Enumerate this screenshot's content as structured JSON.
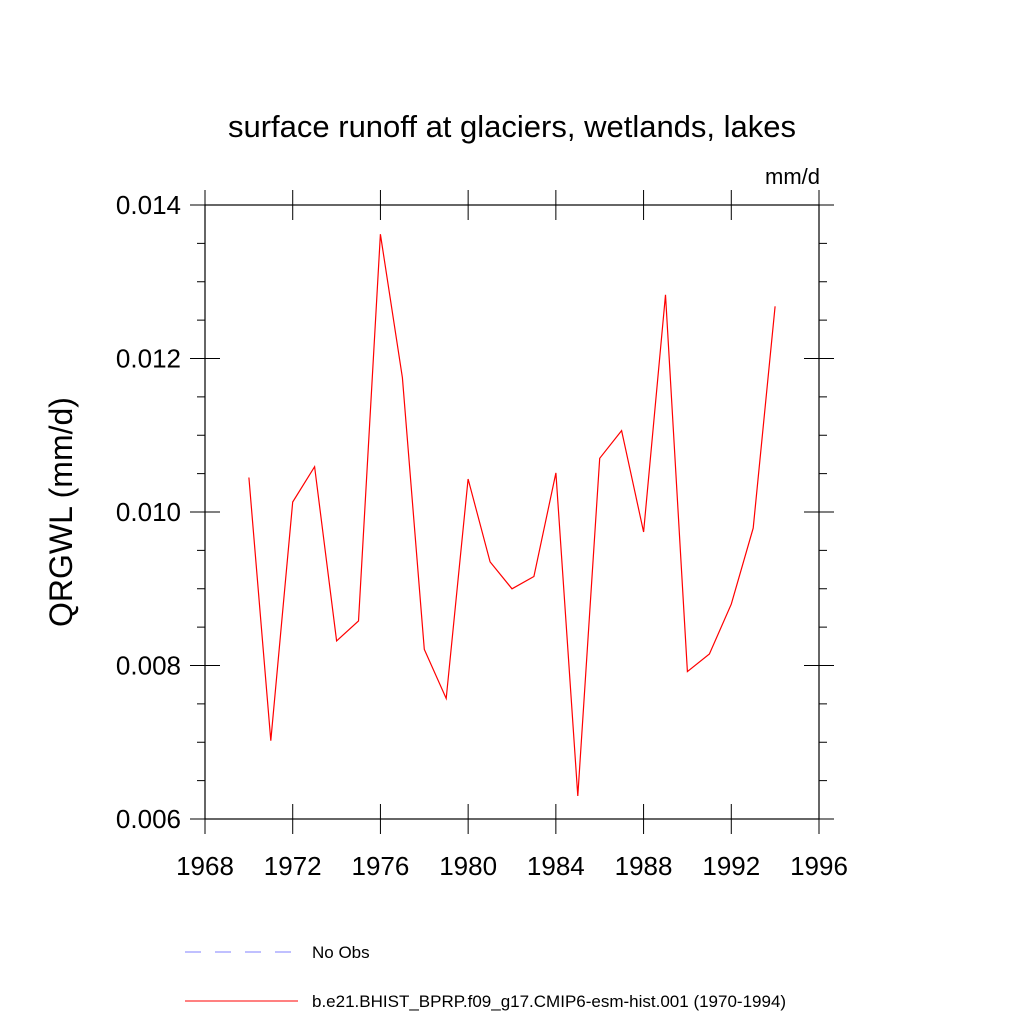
{
  "chart_data": {
    "type": "line",
    "title": "surface runoff at glaciers, wetlands, lakes",
    "units": "mm/d",
    "ylabel": "QRGWL  (mm/d)",
    "xlabel": "",
    "xlim": [
      1968,
      1996
    ],
    "ylim": [
      0.006,
      0.014
    ],
    "x_ticks": [
      1968,
      1972,
      1976,
      1980,
      1984,
      1988,
      1992,
      1996
    ],
    "x_tick_labels": [
      "1968",
      "1972",
      "1976",
      "1980",
      "1984",
      "1988",
      "1992",
      "1996"
    ],
    "y_ticks": [
      0.006,
      0.008,
      0.01,
      0.012,
      0.014
    ],
    "y_tick_labels": [
      "0.006",
      "0.008",
      "0.010",
      "0.012",
      "0.014"
    ],
    "x_minor_step": 1,
    "y_minor_step": 0.0005,
    "grid": false,
    "legend_position": "bottom",
    "series": [
      {
        "name": "No Obs",
        "color": "#8080ff",
        "dash": "dashed",
        "x": [],
        "values": []
      },
      {
        "name": "b.e21.BHIST_BPRP.f09_g17.CMIP6-esm-hist.001 (1970-1994)",
        "color": "#ff0000",
        "dash": "solid",
        "x": [
          1970,
          1971,
          1972,
          1973,
          1974,
          1975,
          1976,
          1977,
          1978,
          1979,
          1980,
          1981,
          1982,
          1983,
          1984,
          1985,
          1986,
          1987,
          1988,
          1989,
          1990,
          1991,
          1992,
          1993,
          1994
        ],
        "values": [
          0.01045,
          0.00702,
          0.01013,
          0.01059,
          0.00832,
          0.00858,
          0.01362,
          0.01175,
          0.00821,
          0.00757,
          0.01043,
          0.00935,
          0.009,
          0.00916,
          0.01051,
          0.0063,
          0.0107,
          0.01106,
          0.00974,
          0.01283,
          0.00792,
          0.00815,
          0.0088,
          0.00979,
          0.01268
        ]
      }
    ]
  }
}
